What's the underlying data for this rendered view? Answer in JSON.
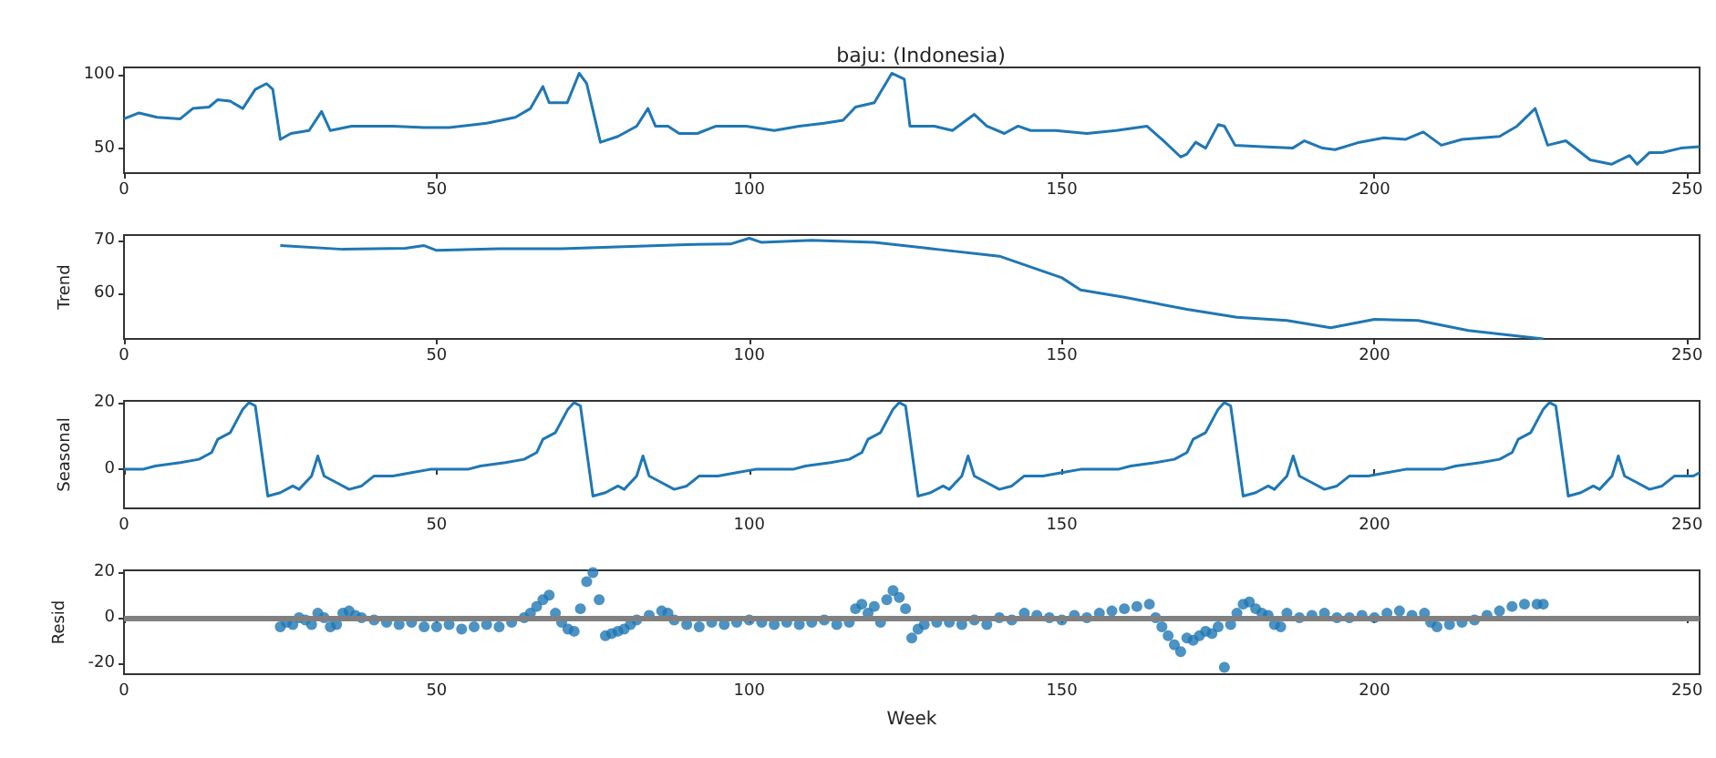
{
  "chart_data": [
    {
      "type": "line",
      "title": "baju: (Indonesia)",
      "color": "#1f77b4",
      "xlim": [
        0,
        252
      ],
      "xticks": [
        0,
        50,
        100,
        150,
        200,
        250
      ],
      "ylim": [
        33,
        105
      ],
      "yticks": [
        50,
        100
      ],
      "x": [
        0,
        2.4,
        5.3,
        9,
        11,
        13.6,
        15,
        17,
        19,
        21,
        22.8,
        23.8,
        25,
        26.7,
        29.6,
        31.6,
        33,
        36.4,
        43,
        48,
        52,
        58,
        62.6,
        65,
        67,
        68,
        70.9,
        72.8,
        74,
        76.2,
        79,
        82,
        83.8,
        85,
        87,
        88.8,
        91.7,
        94.7,
        99.5,
        104,
        108,
        112,
        115,
        117,
        120,
        122.8,
        124.8,
        125.7,
        129.6,
        132.5,
        136,
        138,
        140.8,
        143,
        145,
        149,
        154,
        158.7,
        163.6,
        166,
        169,
        170,
        171.4,
        173,
        175,
        176,
        177.7,
        182,
        186.9,
        188.8,
        191.7,
        193.7,
        197.6,
        201.5,
        205,
        207.8,
        210.7,
        214,
        220,
        222.8,
        225.7,
        227.7,
        230.6,
        234.5,
        237.9,
        240.8,
        242,
        244,
        246,
        249,
        252
      ],
      "values": [
        70,
        74,
        71,
        70,
        77,
        78,
        83,
        82,
        77,
        90,
        94,
        90,
        56,
        60,
        62,
        75,
        62,
        65,
        65,
        64,
        64,
        67,
        71,
        77,
        92,
        81,
        81,
        101,
        94,
        54,
        58,
        65,
        77,
        65,
        65,
        60,
        60,
        65,
        65,
        62,
        65,
        67,
        69,
        78,
        81,
        101,
        97,
        65,
        65,
        62,
        73,
        65,
        60,
        65,
        62,
        62,
        60,
        62,
        65,
        56,
        44,
        46,
        54,
        50,
        66,
        65,
        52,
        51,
        50,
        55,
        50,
        49,
        54,
        57,
        56,
        61,
        52,
        56,
        58,
        65,
        77,
        52,
        55,
        42,
        39,
        45,
        39,
        47,
        47,
        50,
        51
      ]
    },
    {
      "type": "line",
      "ylabel": "Trend",
      "color": "#1f77b4",
      "xlim": [
        0,
        252
      ],
      "xticks": [
        0,
        50,
        100,
        150,
        200,
        250
      ],
      "ylim": [
        51.3,
        71
      ],
      "yticks": [
        60,
        70
      ],
      "x": [
        25,
        35,
        45,
        48,
        50,
        60,
        70,
        80,
        90,
        97,
        100,
        102,
        110,
        120,
        130,
        140,
        150,
        153,
        160,
        170,
        178,
        186,
        193,
        200,
        207,
        215,
        227
      ],
      "values": [
        69,
        68.3,
        68.5,
        69,
        68.1,
        68.4,
        68.4,
        68.8,
        69.2,
        69.3,
        70.4,
        69.6,
        70,
        69.6,
        68.3,
        67,
        62.9,
        60.6,
        59.2,
        56.9,
        55.4,
        54.8,
        53.4,
        55,
        54.8,
        52.9,
        51.3
      ]
    },
    {
      "type": "line",
      "ylabel": "Seasonal",
      "color": "#1f77b4",
      "xlim": [
        0,
        252
      ],
      "xticks": [
        0,
        50,
        100,
        150,
        200,
        250
      ],
      "ylim": [
        -11.7,
        20.5
      ],
      "yticks": [
        0,
        20
      ],
      "x": [
        0,
        3,
        5,
        9,
        12,
        14,
        15,
        17,
        19,
        20,
        21,
        23,
        25,
        27,
        28,
        30,
        31,
        32,
        34,
        36,
        38,
        40,
        43,
        46,
        49,
        51,
        52,
        55,
        57,
        61,
        64,
        66,
        67,
        69,
        71,
        72,
        73,
        75,
        77,
        79,
        80,
        82,
        83,
        84,
        86,
        88,
        90,
        92,
        95,
        98,
        101,
        103,
        104,
        107,
        109,
        113,
        116,
        118,
        119,
        121,
        123,
        124,
        125,
        127,
        129,
        131,
        132,
        134,
        135,
        136,
        138,
        140,
        142,
        144,
        147,
        150,
        153,
        155,
        156,
        159,
        161,
        165,
        168,
        170,
        171,
        173,
        175,
        176,
        177,
        179,
        181,
        183,
        184,
        186,
        187,
        188,
        190,
        192,
        194,
        196,
        199,
        202,
        205,
        207,
        208,
        211,
        213,
        217,
        220,
        222,
        223,
        225,
        227,
        228,
        229,
        231,
        233,
        235,
        236,
        238,
        239,
        240,
        242,
        244,
        246,
        248,
        251,
        252
      ],
      "values": [
        0,
        0,
        1,
        2,
        3,
        5,
        9,
        11,
        18,
        20,
        19,
        -8,
        -7,
        -5,
        -6,
        -2,
        4,
        -2,
        -4,
        -6,
        -5,
        -2,
        -2,
        -1,
        0,
        0,
        0,
        0,
        1,
        2,
        3,
        5,
        9,
        11,
        18,
        20,
        19,
        -8,
        -7,
        -5,
        -6,
        -2,
        4,
        -2,
        -4,
        -6,
        -5,
        -2,
        -2,
        -1,
        0,
        0,
        0,
        0,
        1,
        2,
        3,
        5,
        9,
        11,
        18,
        20,
        19,
        -8,
        -7,
        -5,
        -6,
        -2,
        4,
        -2,
        -4,
        -6,
        -5,
        -2,
        -2,
        -1,
        0,
        0,
        0,
        0,
        1,
        2,
        3,
        5,
        9,
        11,
        18,
        20,
        19,
        -8,
        -7,
        -5,
        -6,
        -2,
        4,
        -2,
        -4,
        -6,
        -5,
        -2,
        -2,
        -1,
        0,
        0,
        0,
        0,
        1,
        2,
        3,
        5,
        9,
        11,
        18,
        20,
        19,
        -8,
        -7,
        -5,
        -6,
        -2,
        4,
        -2,
        -4,
        -6,
        -5,
        -2,
        -2,
        -1
      ]
    },
    {
      "type": "scatter",
      "ylabel": "Resid",
      "xlabel": "Week",
      "color": "#1f77b4",
      "marker": "circle",
      "xlim": [
        0,
        252
      ],
      "xticks": [
        0,
        50,
        100,
        150,
        200,
        250
      ],
      "ylim": [
        -25,
        21
      ],
      "yticks": [
        -20,
        0,
        20
      ],
      "ref_lines": [
        {
          "axis": "y",
          "value": 0,
          "color": "#808080"
        }
      ],
      "x": [
        25,
        26,
        27,
        28,
        29,
        30,
        31,
        32,
        33,
        34,
        35,
        36,
        37,
        38,
        40,
        42,
        44,
        46,
        48,
        50,
        52,
        54,
        56,
        58,
        60,
        62,
        64,
        65,
        66,
        67,
        68,
        69,
        70,
        71,
        72,
        73,
        74,
        75,
        76,
        77,
        78,
        79,
        80,
        81,
        82,
        84,
        86,
        87,
        88,
        90,
        92,
        94,
        96,
        98,
        100,
        102,
        104,
        106,
        108,
        110,
        112,
        114,
        116,
        117,
        118,
        119,
        120,
        121,
        122,
        123,
        124,
        125,
        126,
        127,
        128,
        130,
        132,
        134,
        136,
        138,
        140,
        142,
        144,
        146,
        148,
        150,
        152,
        154,
        156,
        158,
        160,
        162,
        164,
        165,
        166,
        167,
        168,
        169,
        170,
        171,
        172,
        173,
        174,
        175,
        176,
        177,
        178,
        179,
        180,
        181,
        182,
        183,
        184,
        185,
        186,
        188,
        190,
        192,
        194,
        196,
        198,
        200,
        202,
        204,
        206,
        208,
        209,
        210,
        212,
        214,
        216,
        218,
        220,
        222,
        224,
        226,
        227
      ],
      "values": [
        -4,
        -2,
        -3,
        0,
        -1,
        -3,
        2,
        0,
        -4,
        -3,
        2,
        3,
        1,
        0,
        -1,
        -2,
        -3,
        -2,
        -4,
        -4,
        -3,
        -5,
        -4,
        -3,
        -4,
        -2,
        0,
        2,
        5,
        8,
        10,
        2,
        -2,
        -5,
        -6,
        4,
        16,
        20,
        8,
        -8,
        -7,
        -6,
        -5,
        -3,
        -1,
        1,
        3,
        2,
        -1,
        -3,
        -4,
        -2,
        -3,
        -2,
        -1,
        -2,
        -3,
        -2,
        -3,
        -2,
        -1,
        -3,
        -2,
        4,
        6,
        2,
        5,
        -2,
        8,
        12,
        9,
        4,
        -9,
        -5,
        -3,
        -2,
        -2,
        -3,
        -1,
        -3,
        0,
        -1,
        2,
        1,
        0,
        -1,
        1,
        0,
        2,
        3,
        4,
        5,
        6,
        0,
        -4,
        -8,
        -12,
        -15,
        -9,
        -10,
        -8,
        -6,
        -7,
        -4,
        -22,
        -3,
        2,
        6,
        7,
        4,
        2,
        1,
        -3,
        -4,
        2,
        0,
        1,
        2,
        0,
        0,
        1,
        0,
        2,
        3,
        1,
        2,
        -2,
        -4,
        -3,
        -2,
        -1,
        1,
        3,
        5,
        6,
        6,
        6
      ]
    }
  ]
}
